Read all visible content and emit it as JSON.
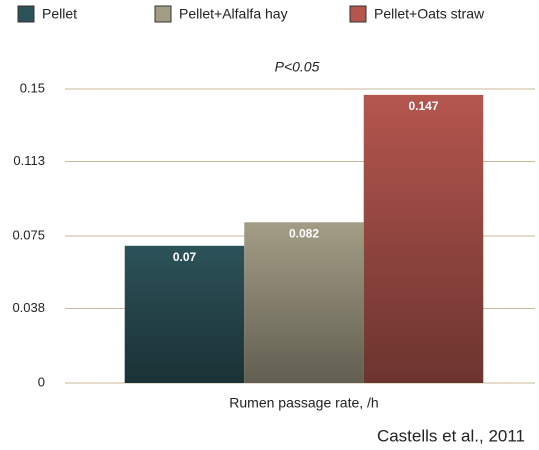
{
  "chart_data": {
    "type": "bar",
    "annotation": "P<0.05",
    "categories": [
      "Rumen passage rate, /h"
    ],
    "series": [
      {
        "name": "Pellet",
        "color": "#2c5259",
        "values": [
          0.07
        ]
      },
      {
        "name": "Pellet+Alfalfa hay",
        "color": "#a39d86",
        "values": [
          0.082
        ]
      },
      {
        "name": "Pellet+Oats straw",
        "color": "#b4564e",
        "values": [
          0.147
        ]
      }
    ],
    "ylim": [
      0,
      0.15
    ],
    "yticks": [
      0,
      0.038,
      0.075,
      0.113,
      0.15
    ],
    "grid": true,
    "legend": "top",
    "source": "Castells et al., 2011"
  }
}
